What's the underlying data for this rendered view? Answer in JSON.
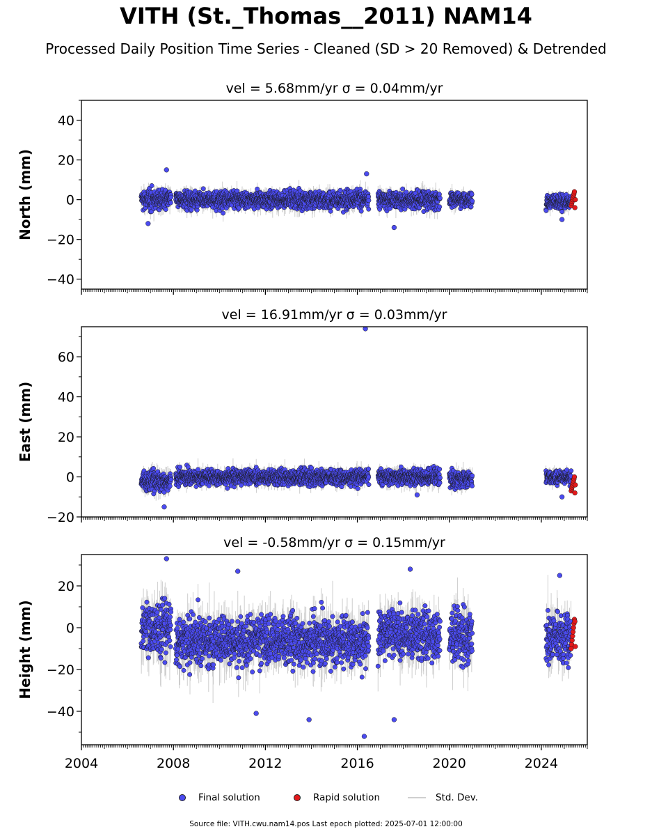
{
  "title": "VITH (St._Thomas__2011) NAM14",
  "subtitle": "Processed Daily Position Time Series - Cleaned (SD > 20 Removed) & Detrended",
  "footer": "Source file: VITH.cwu.nam14.pos  Last epoch plotted: 2025-07-01 12:00:00",
  "legend": {
    "final_label": "Final solution",
    "rapid_label": "Rapid solution",
    "std_label": "Std. Dev."
  },
  "colors": {
    "final": "#4b4bf0",
    "rapid": "#e31a1c",
    "std": "#bdbdbd",
    "edge": "#1a1a1a"
  },
  "chart_data": {
    "type": "scatter",
    "x_label": "",
    "x_range": [
      2004.0,
      2026.0
    ],
    "x_ticks": [
      2004,
      2008,
      2012,
      2016,
      2020,
      2024
    ],
    "data_gaps": [
      [
        2007.9,
        2008.0
      ],
      [
        2016.5,
        2016.9
      ],
      [
        2019.6,
        2020.0
      ],
      [
        2021.0,
        2024.2
      ]
    ],
    "rapid_range": [
      2025.3,
      2025.5
    ],
    "panels": [
      {
        "key": "north",
        "title": "vel = 5.68mm/yr   σ = 0.04mm/yr",
        "ylabel": "North (mm)",
        "ylim": [
          -45,
          50
        ],
        "yticks": [
          -40,
          -20,
          0,
          20,
          40
        ],
        "segments": [
          {
            "x0": 2006.6,
            "x1": 2007.9,
            "mean": 0,
            "sd": 3.2
          },
          {
            "x0": 2008.1,
            "x1": 2016.5,
            "mean": 0,
            "sd": 3.0
          },
          {
            "x0": 2016.9,
            "x1": 2019.6,
            "mean": 0,
            "sd": 3.0
          },
          {
            "x0": 2020.0,
            "x1": 2021.0,
            "mean": 0,
            "sd": 2.6
          },
          {
            "x0": 2024.2,
            "x1": 2025.3,
            "mean": -1,
            "sd": 2.6
          }
        ],
        "rapid_values": [
          -3,
          -2,
          -1,
          0,
          1,
          2,
          3,
          4,
          -4,
          0
        ],
        "outliers": [
          [
            2007.7,
            15
          ],
          [
            2016.4,
            13
          ],
          [
            2017.6,
            -14
          ],
          [
            2024.9,
            -10
          ],
          [
            2006.9,
            -12
          ]
        ]
      },
      {
        "key": "east",
        "title": "vel = 16.91mm/yr   σ = 0.03mm/yr",
        "ylabel": "East (mm)",
        "ylim": [
          -20,
          75
        ],
        "yticks": [
          -20,
          0,
          20,
          40,
          60
        ],
        "segments": [
          {
            "x0": 2006.6,
            "x1": 2007.9,
            "mean": -2,
            "sd": 3.5
          },
          {
            "x0": 2008.1,
            "x1": 2016.5,
            "mean": 0,
            "sd": 2.6
          },
          {
            "x0": 2016.9,
            "x1": 2019.6,
            "mean": 0,
            "sd": 2.8
          },
          {
            "x0": 2020.0,
            "x1": 2021.0,
            "mean": -1,
            "sd": 2.8
          },
          {
            "x0": 2024.2,
            "x1": 2025.3,
            "mean": 0,
            "sd": 2.2
          }
        ],
        "rapid_values": [
          -7,
          -6,
          -5,
          -4,
          -3,
          -2,
          -1,
          0,
          -8,
          -4
        ],
        "outliers": [
          [
            2016.35,
            74
          ],
          [
            2007.6,
            -15
          ],
          [
            2024.9,
            -10
          ],
          [
            2018.6,
            -9
          ]
        ]
      },
      {
        "key": "height",
        "title": "vel = -0.58mm/yr   σ = 0.15mm/yr",
        "ylabel": "Height (mm)",
        "ylim": [
          -56,
          35
        ],
        "yticks": [
          -40,
          -20,
          0,
          20
        ],
        "segments": [
          {
            "x0": 2006.6,
            "x1": 2007.9,
            "mean": 0,
            "sd": 9
          },
          {
            "x0": 2008.1,
            "x1": 2016.5,
            "mean": -6,
            "sd": 8
          },
          {
            "x0": 2016.9,
            "x1": 2019.6,
            "mean": -3,
            "sd": 8
          },
          {
            "x0": 2020.0,
            "x1": 2021.0,
            "mean": -4,
            "sd": 8
          },
          {
            "x0": 2024.2,
            "x1": 2025.3,
            "mean": -4,
            "sd": 8
          }
        ],
        "rapid_values": [
          -10,
          -8,
          -6,
          -4,
          -2,
          0,
          2,
          4,
          3,
          -9
        ],
        "outliers": [
          [
            2007.7,
            33
          ],
          [
            2010.8,
            27
          ],
          [
            2018.3,
            28
          ],
          [
            2016.3,
            -52
          ],
          [
            2013.9,
            -44
          ],
          [
            2017.6,
            -44
          ],
          [
            2024.8,
            25
          ],
          [
            2011.6,
            -41
          ]
        ]
      }
    ]
  }
}
